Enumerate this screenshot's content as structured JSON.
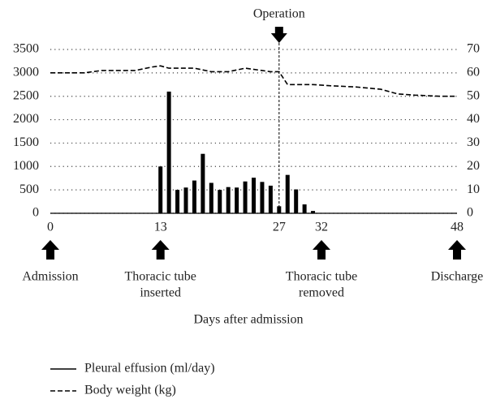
{
  "chart_data": {
    "type": "combo",
    "xlabel": "Days after admission",
    "xlim": [
      0,
      48
    ],
    "xticks": [
      0,
      13,
      27,
      32,
      48
    ],
    "ylim": [
      0,
      3500
    ],
    "yticks": [
      0,
      500,
      1000,
      1500,
      2000,
      2500,
      3000,
      3500
    ],
    "y2lim": [
      0,
      70
    ],
    "y2ticks": [
      0,
      10,
      20,
      30,
      40,
      50,
      60,
      70
    ],
    "grid": true,
    "series": [
      {
        "name": "Pleural effusion (ml/day)",
        "type": "bar",
        "color": "#000000",
        "x": [
          13,
          14,
          15,
          16,
          17,
          18,
          19,
          20,
          21,
          22,
          23,
          24,
          25,
          26,
          27,
          28,
          29,
          30,
          31
        ],
        "values": [
          1000,
          2600,
          500,
          550,
          700,
          1270,
          650,
          500,
          560,
          550,
          680,
          760,
          670,
          590,
          150,
          820,
          510,
          190,
          50
        ]
      },
      {
        "name": "Body weight (kg)",
        "type": "line",
        "axis": "y2",
        "color": "#000000",
        "dashed": true,
        "x": [
          0,
          4,
          6,
          10,
          12,
          13,
          14,
          17,
          19,
          21,
          23,
          25,
          26,
          27,
          28,
          31,
          33,
          36,
          39,
          41,
          43,
          46,
          48
        ],
        "values": [
          60,
          60,
          61,
          61,
          62.5,
          63,
          62,
          62,
          60.5,
          60.5,
          62,
          61,
          60.5,
          60.5,
          55,
          55,
          54.5,
          54,
          53,
          51,
          50.5,
          50,
          50
        ]
      }
    ],
    "operation": {
      "x": 27,
      "text": "Operation"
    },
    "annotations": [
      {
        "x": 0,
        "lines": [
          "Admission"
        ]
      },
      {
        "x": 13,
        "lines": [
          "Thoracic tube",
          "inserted"
        ]
      },
      {
        "x": 32,
        "lines": [
          "Thoracic tube",
          "removed"
        ]
      },
      {
        "x": 48,
        "lines": [
          "Discharge"
        ]
      }
    ]
  }
}
